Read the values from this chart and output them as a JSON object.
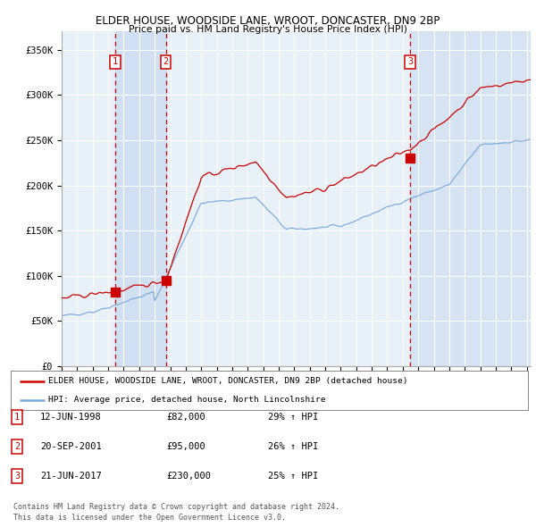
{
  "title1": "ELDER HOUSE, WOODSIDE LANE, WROOT, DONCASTER, DN9 2BP",
  "title2": "Price paid vs. HM Land Registry's House Price Index (HPI)",
  "ylabel_ticks": [
    "£0",
    "£50K",
    "£100K",
    "£150K",
    "£200K",
    "£250K",
    "£300K",
    "£350K"
  ],
  "ytick_vals": [
    0,
    50000,
    100000,
    150000,
    200000,
    250000,
    300000,
    350000
  ],
  "ylim": [
    0,
    370000
  ],
  "sale_dates": [
    "1998-06-12",
    "2001-09-20",
    "2017-06-21"
  ],
  "sale_prices": [
    82000,
    95000,
    230000
  ],
  "sale_labels": [
    "1",
    "2",
    "3"
  ],
  "legend_red": "ELDER HOUSE, WOODSIDE LANE, WROOT, DONCASTER, DN9 2BP (detached house)",
  "legend_blue": "HPI: Average price, detached house, North Lincolnshire",
  "table_entries": [
    {
      "num": "1",
      "date": "12-JUN-1998",
      "price": "£82,000",
      "change": "29% ↑ HPI"
    },
    {
      "num": "2",
      "date": "20-SEP-2001",
      "price": "£95,000",
      "change": "26% ↑ HPI"
    },
    {
      "num": "3",
      "date": "21-JUN-2017",
      "price": "£230,000",
      "change": "25% ↑ HPI"
    }
  ],
  "footnote1": "Contains HM Land Registry data © Crown copyright and database right 2024.",
  "footnote2": "This data is licensed under the Open Government Licence v3.0.",
  "bg_color": "#ffffff",
  "plot_bg_color": "#e8f0f8",
  "grid_color": "#ffffff",
  "red_line_color": "#cc0000",
  "blue_line_color": "#7aaadd",
  "shade_color": "#ccddf0",
  "dashed_color": "#dd0000",
  "marker_color": "#cc0000",
  "label_box_color": "#cc0000"
}
